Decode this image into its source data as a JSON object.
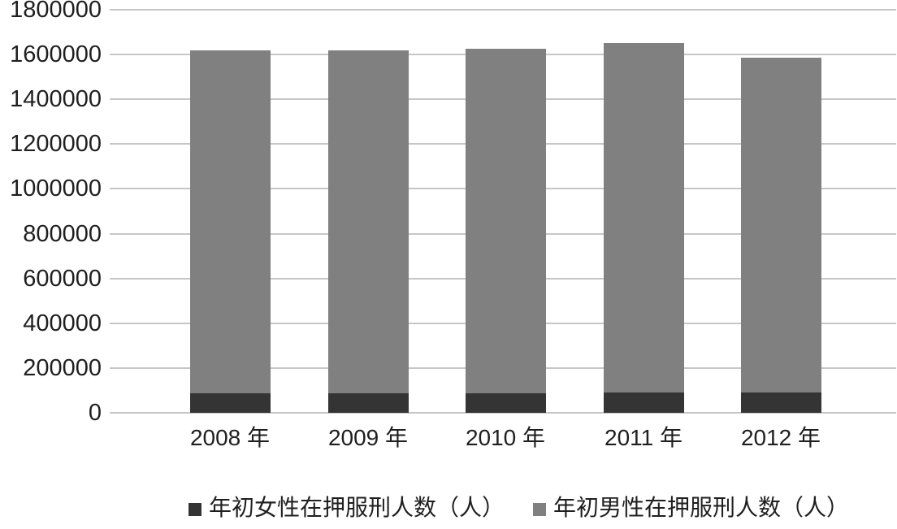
{
  "chart_data": {
    "type": "bar",
    "stacked": true,
    "title": "",
    "xlabel": "",
    "ylabel": "",
    "categories": [
      "2008 年",
      "2009 年",
      "2010 年",
      "2011 年",
      "2012 年"
    ],
    "series": [
      {
        "name": "年初女性在押服刑人数（人）",
        "color": "#343434",
        "values": [
          86000,
          86000,
          87000,
          89000,
          90000
        ]
      },
      {
        "name": "年初男性在押服刑人数（人）",
        "color": "#808080",
        "values": [
          1534000,
          1534000,
          1538000,
          1561000,
          1495000
        ]
      }
    ],
    "ylim": [
      0,
      1800000
    ],
    "ytick_step": 200000,
    "ytick_labels": [
      "1800000",
      "1600000",
      "1400000",
      "1200000",
      "1000000",
      "800000",
      "600000",
      "400000",
      "200000",
      "0"
    ],
    "grid": "horizontal",
    "gridline_color": "#c6c6c6",
    "text_color": "#1f1f1f",
    "background_color": "#ffffff",
    "legend_position": "bottom"
  }
}
